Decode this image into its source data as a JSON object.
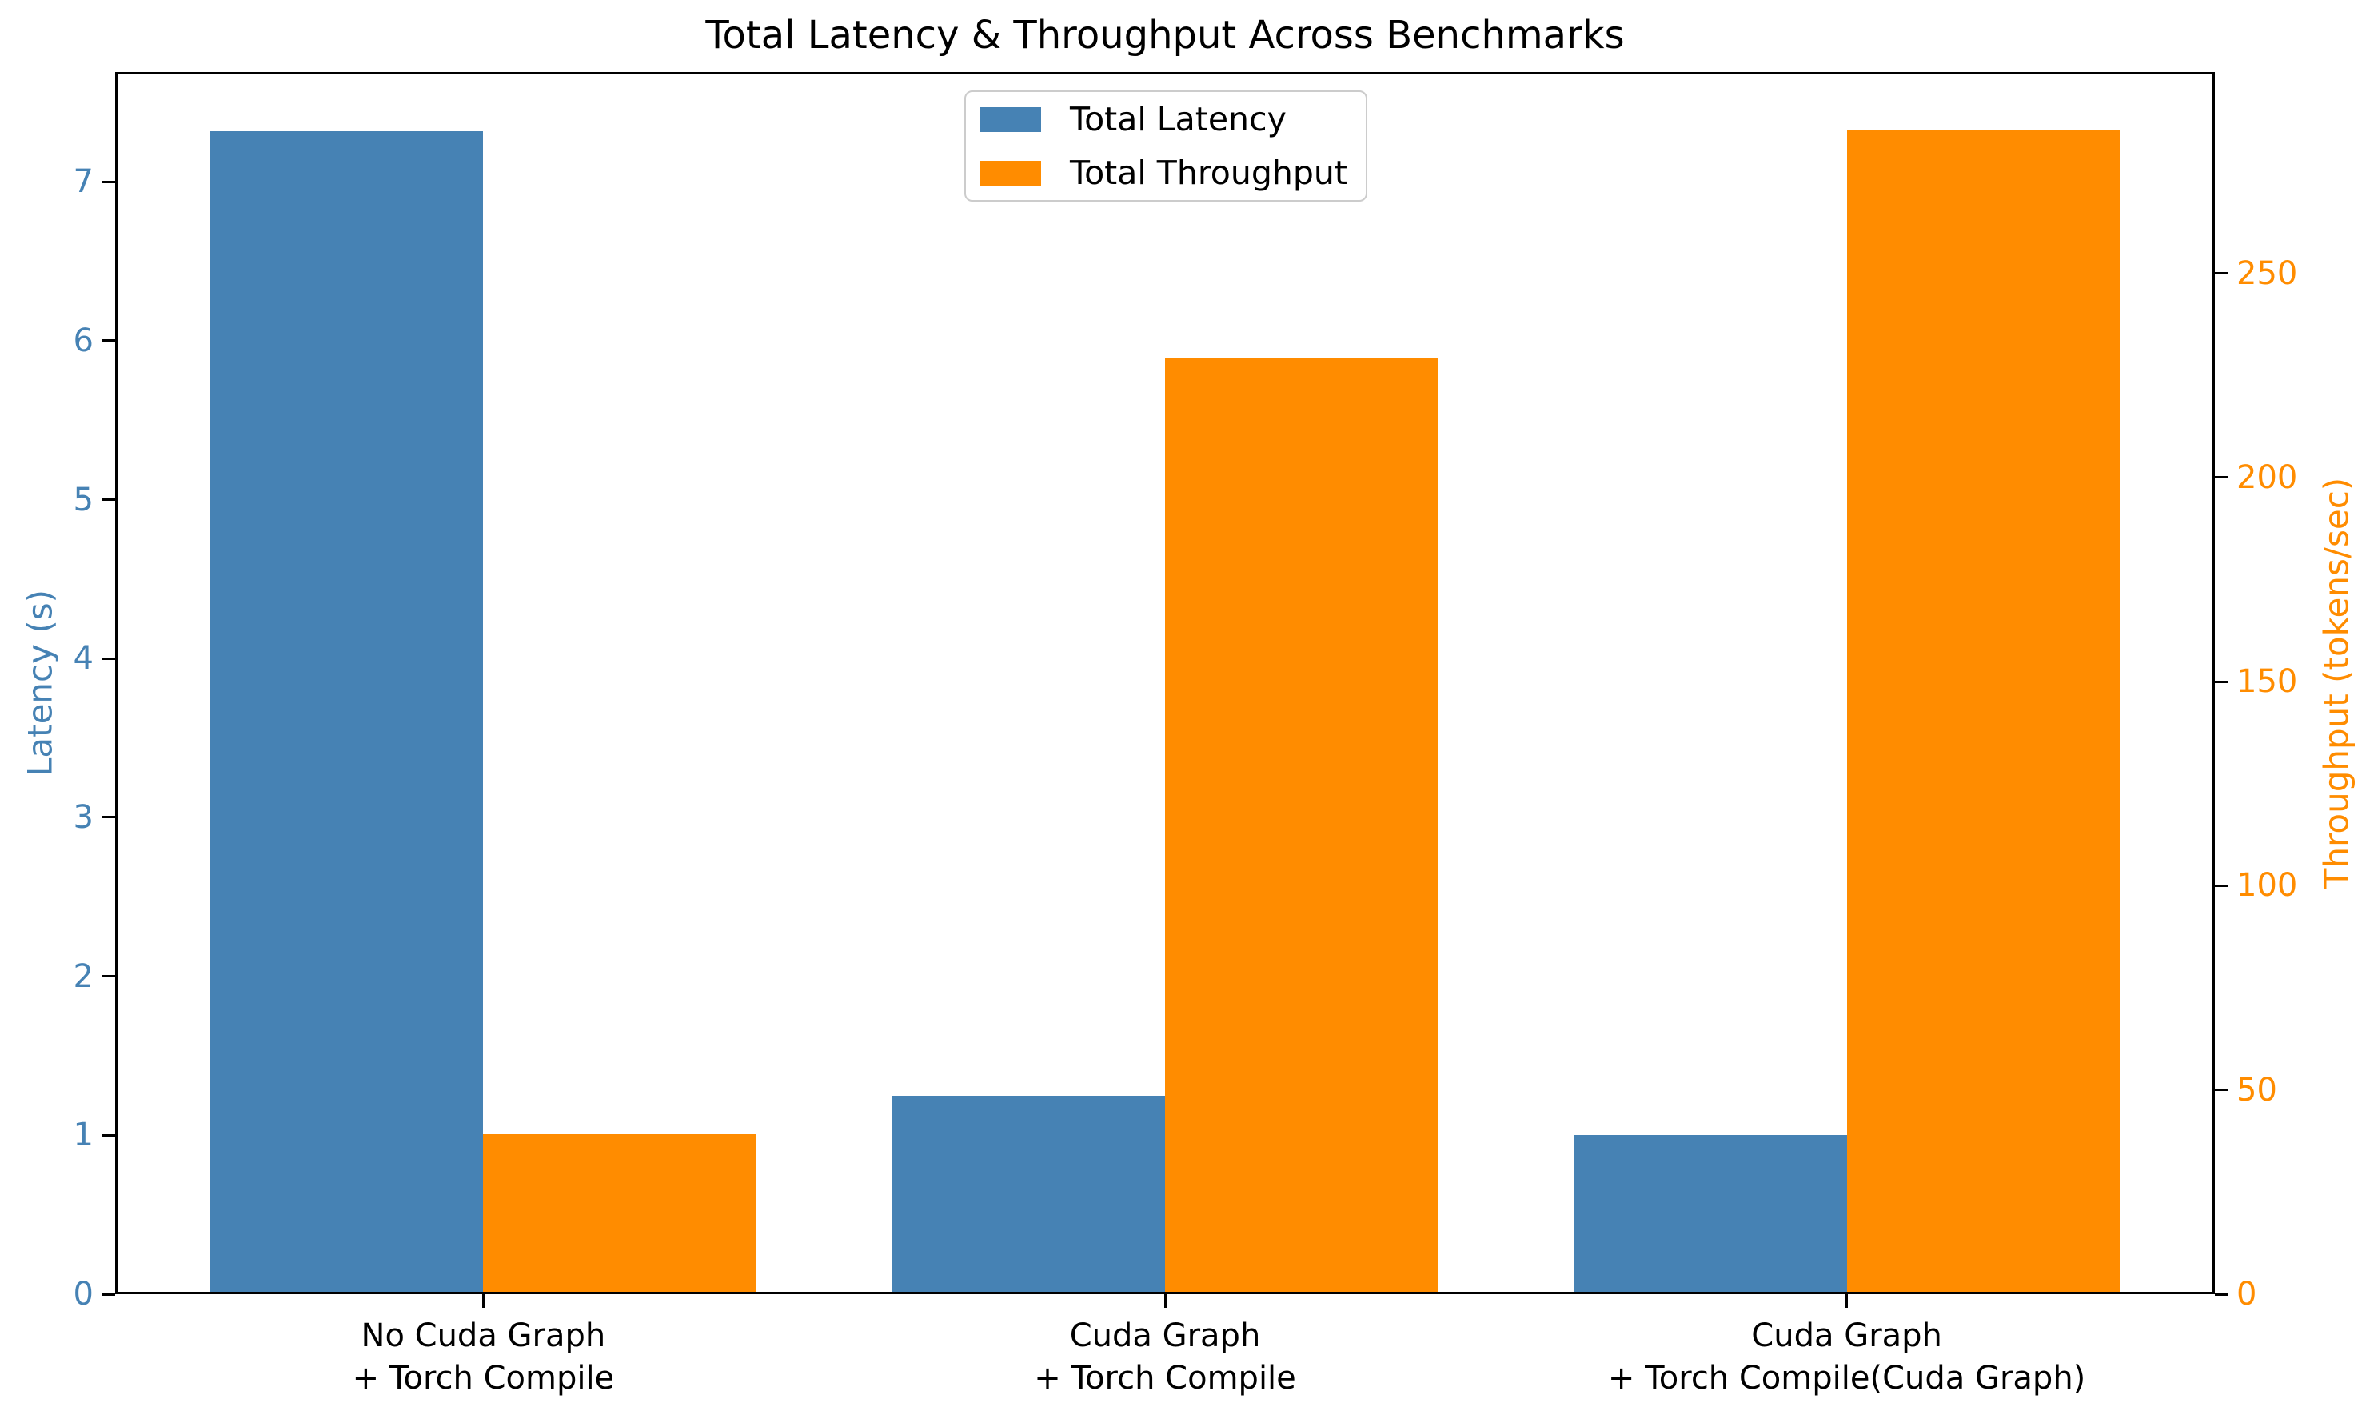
{
  "figure": {
    "title": "Total Latency & Throughput Across Benchmarks"
  },
  "chart_data": {
    "type": "bar",
    "title": "Total Latency & Throughput Across Benchmarks",
    "categories": [
      "No Cuda Graph\n+ Torch Compile",
      "Cuda Graph\n+ Torch Compile",
      "Cuda Graph\n+ Torch Compile(Cuda Graph)"
    ],
    "series": [
      {
        "name": "Total Latency",
        "axis": "left",
        "color": "#4682B4",
        "values": [
          7.32,
          1.25,
          1.0
        ]
      },
      {
        "name": "Total Throughput",
        "axis": "right",
        "color": "#FF8C00",
        "values": [
          39.2,
          229.4,
          285.0
        ]
      }
    ],
    "left_axis": {
      "label": "Latency (s)",
      "color": "#4682B4",
      "ticks": [
        0,
        1,
        2,
        3,
        4,
        5,
        6,
        7
      ],
      "lim": [
        0,
        7.69
      ]
    },
    "right_axis": {
      "label": "Throughput (tokens/sec)",
      "color": "#FF8C00",
      "ticks": [
        0,
        50,
        100,
        150,
        200,
        250
      ],
      "lim": [
        0,
        299.3
      ]
    },
    "xlim": [
      -0.54,
      2.54
    ],
    "bar_width": 0.4,
    "grid": false,
    "legend": {
      "position": "upper center",
      "entries": [
        "Total Latency",
        "Total Throughput"
      ]
    }
  }
}
